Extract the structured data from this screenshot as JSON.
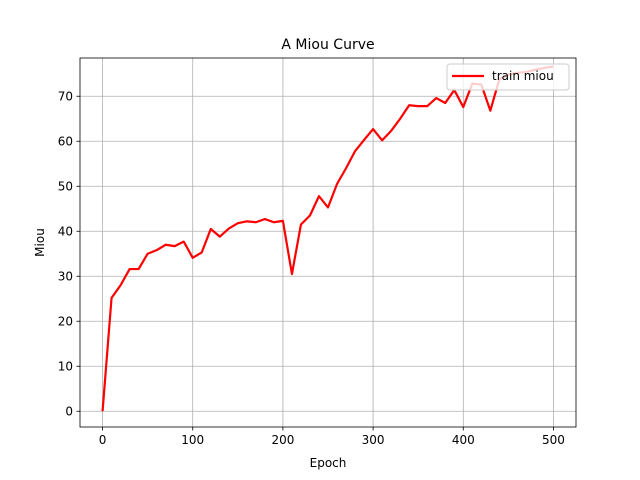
{
  "chart_data": {
    "type": "line",
    "title": "A Miou Curve",
    "xlabel": "Epoch",
    "ylabel": "Miou",
    "xlim": [
      -25,
      525
    ],
    "ylim": [
      -3.5,
      78.5
    ],
    "xticks": [
      0,
      100,
      200,
      300,
      400,
      500
    ],
    "yticks": [
      0,
      10,
      20,
      30,
      40,
      50,
      60,
      70
    ],
    "grid": true,
    "legend_position": "top-right",
    "series": [
      {
        "name": "train miou",
        "color": "#ff0000",
        "x": [
          0,
          10,
          20,
          30,
          40,
          50,
          60,
          70,
          80,
          90,
          100,
          110,
          120,
          130,
          140,
          150,
          160,
          170,
          180,
          190,
          200,
          210,
          220,
          230,
          240,
          250,
          260,
          270,
          280,
          290,
          300,
          310,
          320,
          330,
          340,
          350,
          360,
          370,
          380,
          390,
          400,
          410,
          420,
          430,
          440,
          450,
          460,
          470,
          480,
          490,
          500
        ],
        "values": [
          0.0,
          25.2,
          28.0,
          31.6,
          31.6,
          35.0,
          35.8,
          37.0,
          36.7,
          37.7,
          34.1,
          35.3,
          40.5,
          38.8,
          40.6,
          41.8,
          42.2,
          42.0,
          42.7,
          42.0,
          42.3,
          30.5,
          41.5,
          43.5,
          47.8,
          45.3,
          50.5,
          54.0,
          57.8,
          60.3,
          62.7,
          60.2,
          62.3,
          65.0,
          68.0,
          67.8,
          67.8,
          69.6,
          68.5,
          71.4,
          67.6,
          72.8,
          72.6,
          66.8,
          73.8,
          74.8,
          75.2,
          75.4,
          75.9,
          76.3,
          76.6
        ]
      }
    ]
  }
}
